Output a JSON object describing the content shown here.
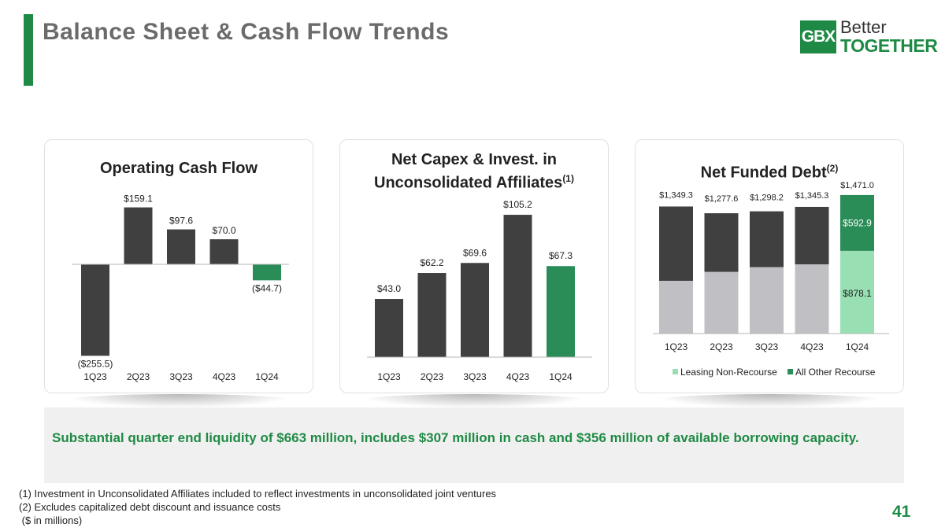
{
  "title": "Balance Sheet & Cash Flow Trends",
  "logo": {
    "mark": "GBX",
    "line1": "Better",
    "line2": "TOGETHER"
  },
  "colors": {
    "dark": "#404040",
    "green": "#2a8c57",
    "light_green": "#98e0b3",
    "light_gray": "#c0c0c4",
    "brand": "#1f8a45"
  },
  "chart_data": [
    {
      "type": "bar",
      "title": "Operating Cash Flow",
      "categories": [
        "1Q23",
        "2Q23",
        "3Q23",
        "4Q23",
        "1Q24"
      ],
      "values": [
        -255.5,
        159.1,
        97.6,
        70.0,
        -44.7
      ],
      "labels": [
        "($255.5)",
        "$159.1",
        "$97.6",
        "$70.0",
        "($44.7)"
      ],
      "highlight_last": true
    },
    {
      "type": "bar",
      "title": "Net Capex & Invest. in Unconsolidated Affiliates",
      "title_sup": "(1)",
      "categories": [
        "1Q23",
        "2Q23",
        "3Q23",
        "4Q23",
        "1Q24"
      ],
      "values": [
        43.0,
        62.2,
        69.6,
        105.2,
        67.3
      ],
      "labels": [
        "$43.0",
        "$62.2",
        "$69.6",
        "$105.2",
        "$67.3"
      ],
      "highlight_last": true
    },
    {
      "type": "bar",
      "stacked": true,
      "title": "Net Funded Debt",
      "title_sup": "(2)",
      "categories": [
        "1Q23",
        "2Q23",
        "3Q23",
        "4Q23",
        "1Q24"
      ],
      "totals": [
        1349.3,
        1277.6,
        1298.2,
        1345.3,
        1471.0
      ],
      "total_labels": [
        "$1,349.3",
        "$1,277.6",
        "$1,298.2",
        "$1,345.3",
        "$1,471.0"
      ],
      "series": [
        {
          "name": "Leasing Non-Recourse",
          "values": [
            560,
            655,
            705,
            735,
            878.1
          ],
          "segment_labels": [
            "",
            "",
            "",
            "",
            "$878.1"
          ]
        },
        {
          "name": "All Other Recourse",
          "values": [
            789.3,
            622.6,
            593.2,
            610.3,
            592.9
          ],
          "segment_labels": [
            "",
            "",
            "",
            "",
            "$592.9"
          ]
        }
      ],
      "legend": "bottom"
    }
  ],
  "callout": "Substantial quarter end liquidity of $663 million, includes $307 million in cash and $356 million of available borrowing capacity.",
  "footnotes": [
    "(1) Investment in Unconsolidated Affiliates included to reflect investments in unconsolidated joint ventures",
    "(2) Excludes capitalized debt discount and issuance costs",
    " ($ in millions)"
  ],
  "page_number": "41"
}
